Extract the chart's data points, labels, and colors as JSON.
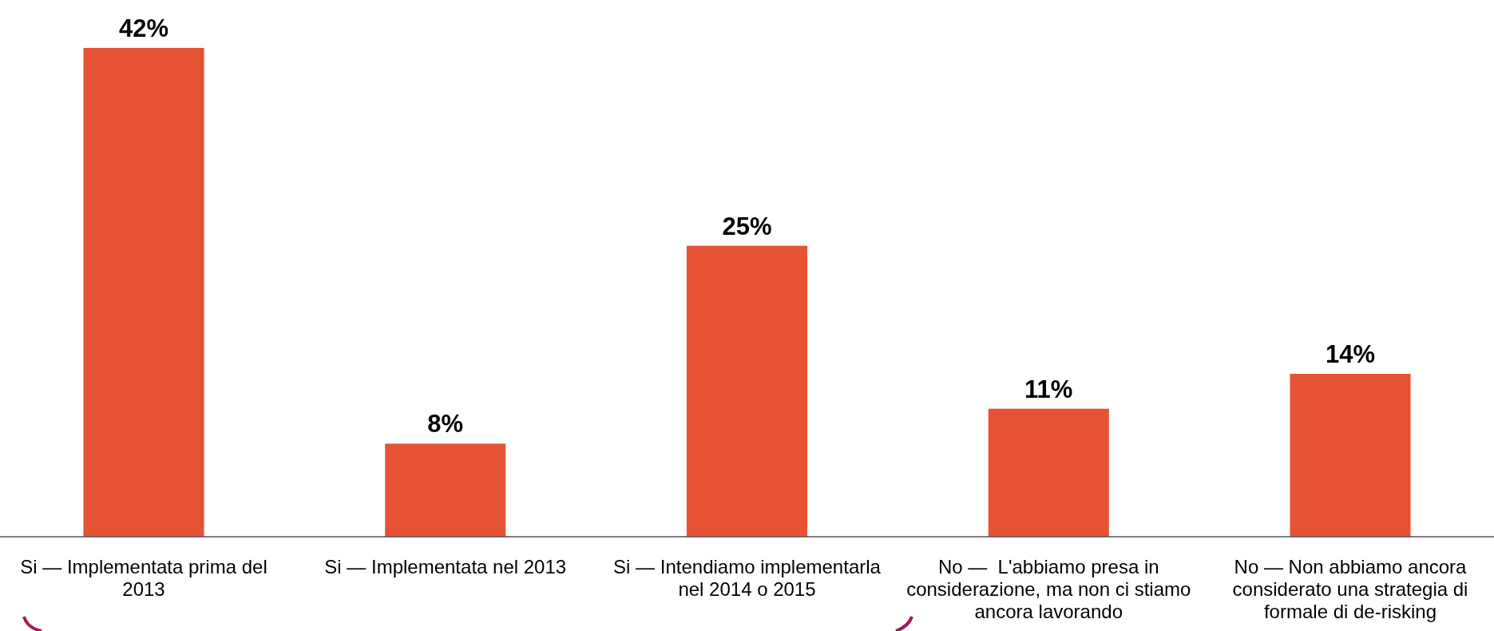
{
  "chart_data": {
    "type": "bar",
    "categories": [
      "Si — Implementata prima del 2013",
      "Si — Implementata nel 2013",
      "Si — Intendiamo implementarla nel 2014 o 2015",
      "No —  L'abbiamo presa in considerazione, ma non ci stiamo ancora lavorando",
      "No — Non abbiamo ancora considerato una strategia di formale di de-risking"
    ],
    "values": [
      42,
      8,
      25,
      11,
      14
    ],
    "value_labels": [
      "42%",
      "8%",
      "25%",
      "11%",
      "14%"
    ],
    "color": "#e65234",
    "grid": false
  }
}
